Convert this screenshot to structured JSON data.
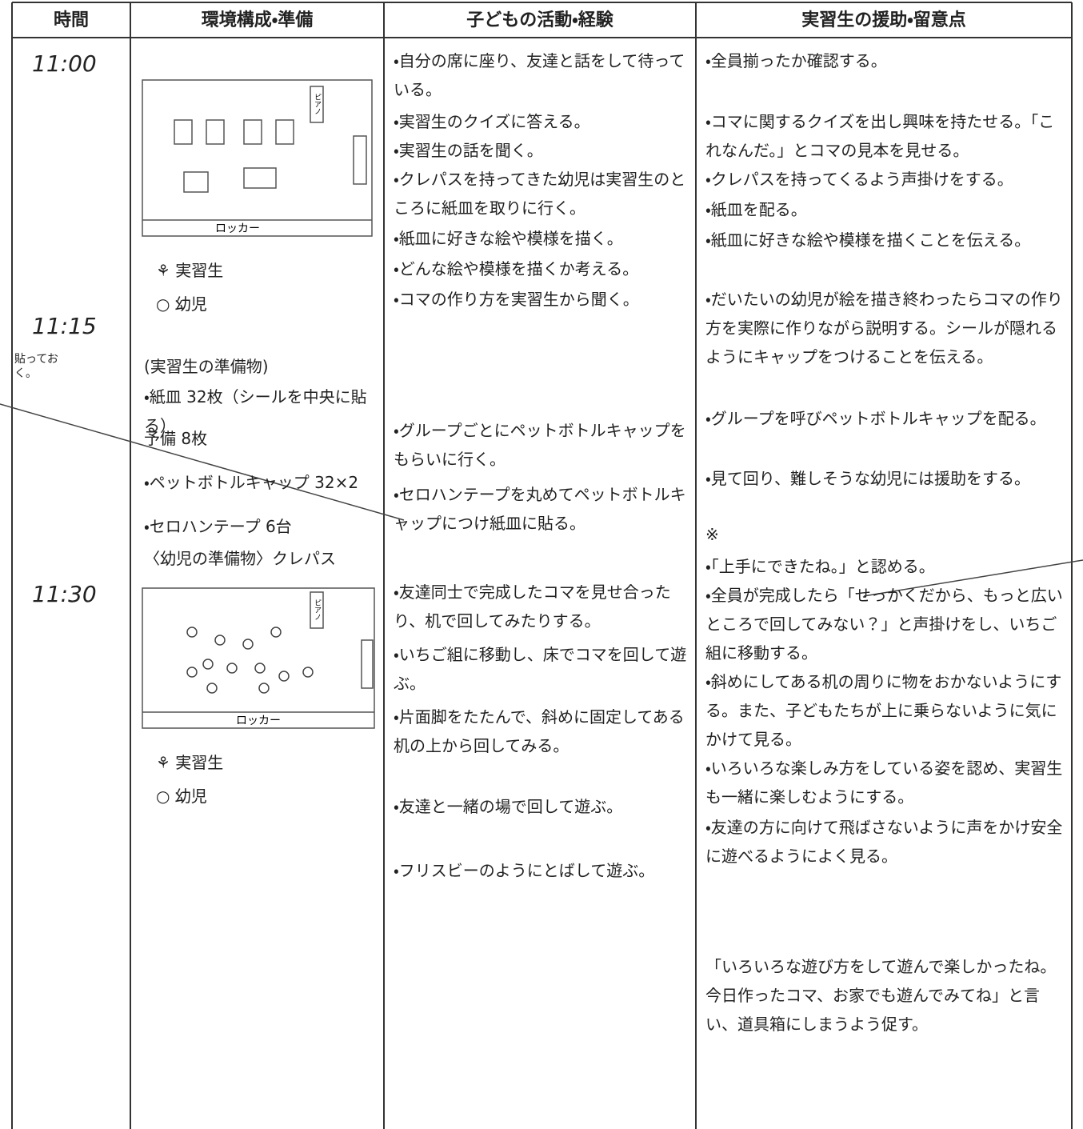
{
  "header": {
    "columns": [
      "時間",
      "環境構成・準備",
      "子どもの活動・経験",
      "実習生の援助・留意点"
    ]
  },
  "times": [
    "11:00",
    "11:15",
    "11:30"
  ],
  "margin_note": "貼っておく。",
  "environment": {
    "diagram_label": "ロッカー",
    "piano": "ピアノ",
    "legend": [
      "⚘ 実習生",
      "○ 幼児"
    ],
    "items": [
      "(実習生の準備物)",
      "・紙皿 32枚（シールを中央に貼る）",
      "予備 8枚",
      "・ペットボトルキャップ 32×2",
      "・セロハンテープ 6台",
      "〈幼児の準備物〉クレパス"
    ]
  },
  "activities": [
    "・自分の席に座り、友達と話をして待っている。",
    "・実習生のクイズに答える。",
    "・実習生の話を聞く。",
    "・クレパスを持ってきた幼児は実習生のところに紙皿を取りに行く。",
    "・紙皿に好きな絵や模様を描く。",
    "・どんな絵や模様を描くか考える。",
    "・コマの作り方を実習生から聞く。",
    "・グループごとにペットボトルキャップをもらいに行く。",
    "・セロハンテープを丸めてペットボトルキャップにつけ紙皿に貼る。",
    "・友達同士で完成したコマを見せ合ったり、机で回してみたりする。",
    "・いちご組に移動し、床でコマを回して遊ぶ。",
    "・片面脚をたたんで、斜めに固定してある机の上から回してみる。",
    "・友達と一緒の場で回して遊ぶ。",
    "・フリスビーのようにとばして遊ぶ。"
  ],
  "support": [
    "・全員揃ったか確認する。",
    "・コマに関するクイズを出し興味を持たせる。「これなんだ。」とコマの見本を見せる。",
    "・クレパスを持ってくるよう声掛けをする。",
    "・紙皿を配る。",
    "・紙皿に好きな絵や模様を描くことを伝える。",
    "・だいたいの幼児が絵を描き終わったらコマの作り方を実際に作りながら説明する。シールが隠れるようにキャップをつけることを伝える。",
    "・グループを呼びペットボトルキャップを配る。",
    "・見て回り、難しそうな幼児には援助をする。",
    "※",
    "・「上手にできたね。」と認める。",
    "・全員が完成したら「せっかくだから、もっと広いところで回してみない？」と声掛けをし、いちご組に移動する。",
    "・斜めにしてある机の周りに物をおかないようにする。また、子どもたちが上に乗らないように気にかけて見る。",
    "・いろいろな楽しみ方をしている姿を認め、実習生も一緒に楽しむようにする。",
    "・友達の方に向けて飛ばさないように声をかけ安全に遊べるようによく見る。",
    "「いろいろな遊び方をして遊んで楽しかったね。今日作ったコマ、お家でも遊んでみてね」と言い、道具箱にしまうよう促す。"
  ]
}
